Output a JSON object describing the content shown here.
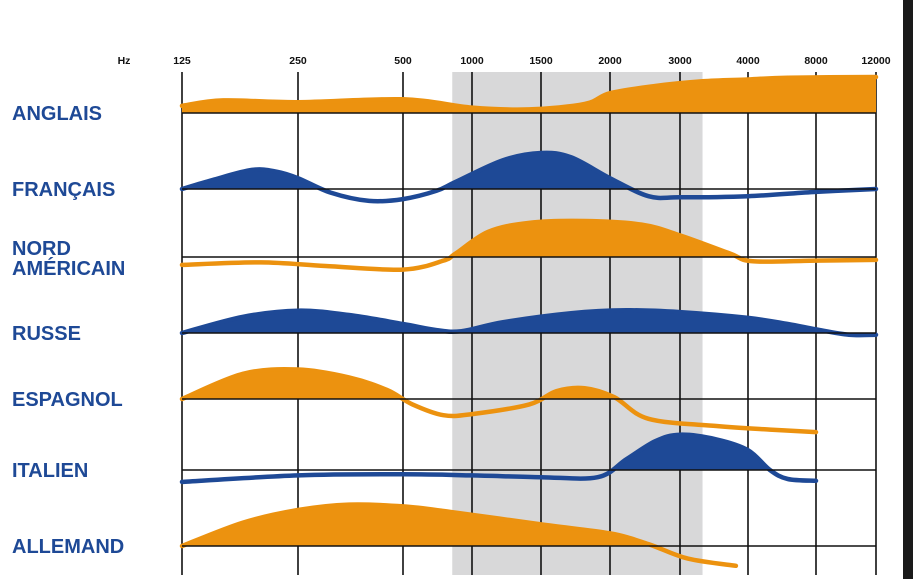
{
  "chart_data": {
    "type": "area",
    "x_unit_label": "Hz",
    "x_ticks": [
      125,
      250,
      500,
      1000,
      1500,
      2000,
      3000,
      4000,
      8000,
      12000
    ],
    "highlight_band": {
      "from": 820,
      "to": 3300,
      "color": "#d8d8d9"
    },
    "colors": {
      "orange": "#ec920f",
      "blue": "#1e4996",
      "grid": "#111111"
    },
    "series": [
      {
        "name": "ANGLAIS",
        "label_lines": [
          "ANGLAIS"
        ],
        "color": "#ec920f",
        "points": [
          [
            125,
            0.2
          ],
          [
            160,
            0.35
          ],
          [
            250,
            0.3
          ],
          [
            500,
            0.38
          ],
          [
            1000,
            0.15
          ],
          [
            1400,
            0.1
          ],
          [
            1800,
            0.25
          ],
          [
            2000,
            0.55
          ],
          [
            2600,
            0.75
          ],
          [
            3300,
            0.88
          ],
          [
            4000,
            0.93
          ],
          [
            6000,
            0.98
          ],
          [
            12000,
            1.0
          ]
        ]
      },
      {
        "name": "FRANÇAIS",
        "label_lines": [
          "FRANÇAIS"
        ],
        "color": "#1e4996",
        "points": [
          [
            125,
            0.0
          ],
          [
            150,
            0.25
          ],
          [
            190,
            0.53
          ],
          [
            220,
            0.48
          ],
          [
            250,
            0.3
          ],
          [
            310,
            -0.1
          ],
          [
            400,
            -0.33
          ],
          [
            500,
            -0.28
          ],
          [
            700,
            -0.05
          ],
          [
            850,
            0.2
          ],
          [
            1200,
            0.8
          ],
          [
            1500,
            1.0
          ],
          [
            1700,
            0.88
          ],
          [
            2000,
            0.3
          ],
          [
            2500,
            -0.2
          ],
          [
            3000,
            -0.23
          ],
          [
            4000,
            -0.2
          ],
          [
            8000,
            -0.08
          ],
          [
            12000,
            0.0
          ]
        ]
      },
      {
        "name": "NORD AMÉRICAIN",
        "label_lines": [
          "NORD",
          "AMÉRICAIN"
        ],
        "color": "#ec920f",
        "points": [
          [
            125,
            -0.22
          ],
          [
            200,
            -0.15
          ],
          [
            300,
            -0.25
          ],
          [
            500,
            -0.35
          ],
          [
            750,
            -0.1
          ],
          [
            850,
            0.1
          ],
          [
            1100,
            0.7
          ],
          [
            1400,
            0.95
          ],
          [
            1800,
            1.0
          ],
          [
            2400,
            0.9
          ],
          [
            3000,
            0.6
          ],
          [
            3700,
            0.1
          ],
          [
            4200,
            -0.12
          ],
          [
            8000,
            -0.1
          ],
          [
            12000,
            -0.08
          ]
        ]
      },
      {
        "name": "RUSSE",
        "label_lines": [
          "RUSSE"
        ],
        "color": "#1e4996",
        "points": [
          [
            125,
            0.0
          ],
          [
            180,
            0.45
          ],
          [
            250,
            0.62
          ],
          [
            350,
            0.5
          ],
          [
            500,
            0.25
          ],
          [
            700,
            0.08
          ],
          [
            900,
            0.05
          ],
          [
            1200,
            0.3
          ],
          [
            1700,
            0.55
          ],
          [
            2200,
            0.63
          ],
          [
            3000,
            0.58
          ],
          [
            4000,
            0.42
          ],
          [
            6000,
            0.25
          ],
          [
            8000,
            0.1
          ],
          [
            10000,
            -0.05
          ],
          [
            12000,
            -0.05
          ]
        ]
      },
      {
        "name": "ESPAGNOL",
        "label_lines": [
          "ESPAGNOL"
        ],
        "color": "#ec920f",
        "points": [
          [
            125,
            0.0
          ],
          [
            180,
            0.7
          ],
          [
            250,
            0.82
          ],
          [
            350,
            0.6
          ],
          [
            450,
            0.25
          ],
          [
            550,
            -0.15
          ],
          [
            750,
            -0.45
          ],
          [
            1000,
            -0.42
          ],
          [
            1400,
            -0.15
          ],
          [
            1600,
            0.22
          ],
          [
            1800,
            0.3
          ],
          [
            2050,
            0.05
          ],
          [
            2500,
            -0.55
          ],
          [
            3500,
            -0.75
          ],
          [
            5000,
            -0.85
          ],
          [
            8000,
            -0.92
          ]
        ]
      },
      {
        "name": "ITALIEN",
        "label_lines": [
          "ITALIEN"
        ],
        "color": "#1e4996",
        "points": [
          [
            125,
            -0.33
          ],
          [
            250,
            -0.15
          ],
          [
            500,
            -0.12
          ],
          [
            1000,
            -0.15
          ],
          [
            1500,
            -0.2
          ],
          [
            1900,
            -0.2
          ],
          [
            2200,
            0.3
          ],
          [
            2600,
            0.8
          ],
          [
            3000,
            0.98
          ],
          [
            3500,
            0.85
          ],
          [
            4000,
            0.55
          ],
          [
            5000,
            0.0
          ],
          [
            6000,
            -0.25
          ],
          [
            8000,
            -0.3
          ]
        ]
      },
      {
        "name": "ALLEMAND",
        "label_lines": [
          "ALLEMAND"
        ],
        "color": "#ec920f",
        "points": [
          [
            125,
            0.0
          ],
          [
            180,
            0.65
          ],
          [
            250,
            1.0
          ],
          [
            350,
            1.15
          ],
          [
            500,
            1.1
          ],
          [
            800,
            0.95
          ],
          [
            1500,
            0.6
          ],
          [
            2000,
            0.35
          ],
          [
            2500,
            0.05
          ],
          [
            3100,
            -0.35
          ],
          [
            3800,
            -0.55
          ]
        ]
      }
    ]
  }
}
